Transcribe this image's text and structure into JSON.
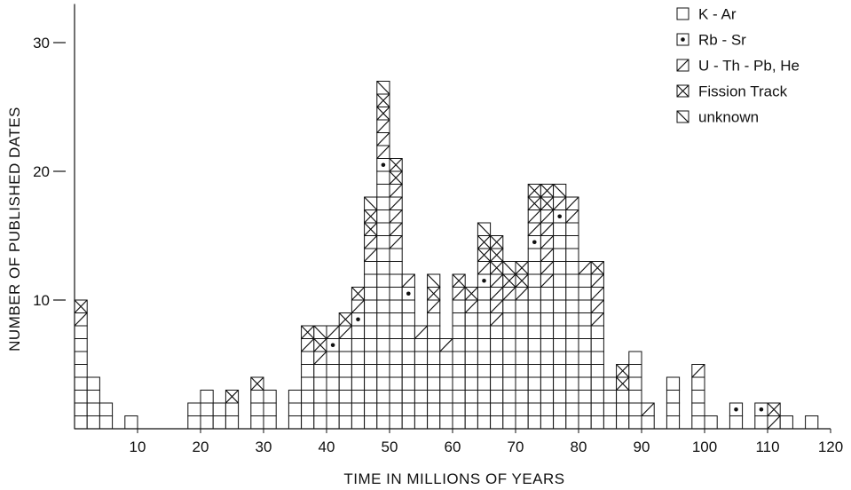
{
  "chart_data": {
    "type": "bar",
    "title": "",
    "xlabel": "TIME IN MILLIONS OF YEARS",
    "ylabel": "NUMBER OF PUBLISHED DATES",
    "xlim": [
      0,
      120
    ],
    "ylim": [
      0,
      33
    ],
    "bin_width_my": 2,
    "x_ticks": [
      10,
      20,
      30,
      40,
      50,
      60,
      70,
      80,
      90,
      100,
      110,
      120
    ],
    "y_ticks": [
      10,
      20,
      30
    ],
    "legend": {
      "position": "top-right",
      "entries": [
        {
          "key": "KAr",
          "label": "K - Ar",
          "pattern": "plain"
        },
        {
          "key": "RbSr",
          "label": "Rb - Sr",
          "pattern": "dot"
        },
        {
          "key": "UThPb",
          "label": "U - Th - Pb, He",
          "pattern": "diagonal"
        },
        {
          "key": "FT",
          "label": "Fission Track",
          "pattern": "cross"
        },
        {
          "key": "unk",
          "label": "unknown",
          "pattern": "backslash"
        }
      ]
    },
    "series": [
      {
        "key": "KAr",
        "values": [
          8,
          4,
          2,
          0,
          1,
          0,
          0,
          0,
          0,
          2,
          3,
          2,
          2,
          0,
          3,
          3,
          0,
          3,
          6,
          5,
          6,
          7,
          8,
          13,
          20,
          14,
          10,
          7,
          9,
          6,
          10,
          9,
          11,
          8,
          10,
          10,
          14,
          11,
          16,
          16,
          12,
          8,
          4,
          3,
          6,
          1,
          0,
          4,
          0,
          4,
          1,
          0,
          1,
          0,
          1,
          0,
          1,
          0,
          1,
          0
        ]
      },
      {
        "key": "RbSr",
        "values": [
          0,
          0,
          0,
          0,
          0,
          0,
          0,
          0,
          0,
          0,
          0,
          0,
          0,
          0,
          0,
          0,
          0,
          0,
          0,
          0,
          1,
          0,
          1,
          0,
          1,
          0,
          1,
          0,
          0,
          0,
          0,
          0,
          1,
          0,
          0,
          0,
          1,
          0,
          1,
          0,
          0,
          0,
          0,
          0,
          0,
          0,
          0,
          0,
          0,
          0,
          0,
          0,
          1,
          0,
          1,
          0,
          0,
          0,
          0,
          0
        ]
      },
      {
        "key": "UThPb",
        "values": [
          1,
          0,
          0,
          0,
          0,
          0,
          0,
          0,
          0,
          0,
          0,
          0,
          0,
          0,
          0,
          0,
          0,
          0,
          1,
          1,
          1,
          1,
          1,
          2,
          3,
          5,
          1,
          1,
          1,
          1,
          1,
          1,
          1,
          4,
          1,
          1,
          2,
          6,
          1,
          2,
          1,
          4,
          0,
          0,
          0,
          1,
          0,
          0,
          0,
          1,
          0,
          0,
          0,
          0,
          0,
          1,
          0,
          0,
          0,
          0
        ]
      },
      {
        "key": "FT",
        "values": [
          1,
          0,
          0,
          0,
          0,
          0,
          0,
          0,
          0,
          0,
          0,
          0,
          1,
          0,
          1,
          0,
          0,
          0,
          1,
          1,
          0,
          1,
          1,
          2,
          2,
          2,
          0,
          0,
          1,
          0,
          1,
          1,
          2,
          3,
          1,
          2,
          2,
          2,
          0,
          0,
          0,
          1,
          0,
          2,
          0,
          0,
          0,
          0,
          0,
          0,
          0,
          0,
          0,
          0,
          0,
          1,
          0,
          0,
          0,
          0
        ]
      },
      {
        "key": "unk",
        "values": [
          0,
          0,
          0,
          0,
          0,
          0,
          0,
          0,
          0,
          0,
          0,
          0,
          0,
          0,
          0,
          0,
          0,
          0,
          0,
          1,
          0,
          0,
          0,
          1,
          1,
          0,
          0,
          0,
          1,
          0,
          0,
          0,
          1,
          0,
          1,
          0,
          0,
          0,
          1,
          0,
          0,
          0,
          0,
          0,
          0,
          0,
          0,
          0,
          0,
          0,
          0,
          0,
          0,
          0,
          0,
          0,
          0,
          0,
          0,
          0
        ]
      }
    ]
  }
}
